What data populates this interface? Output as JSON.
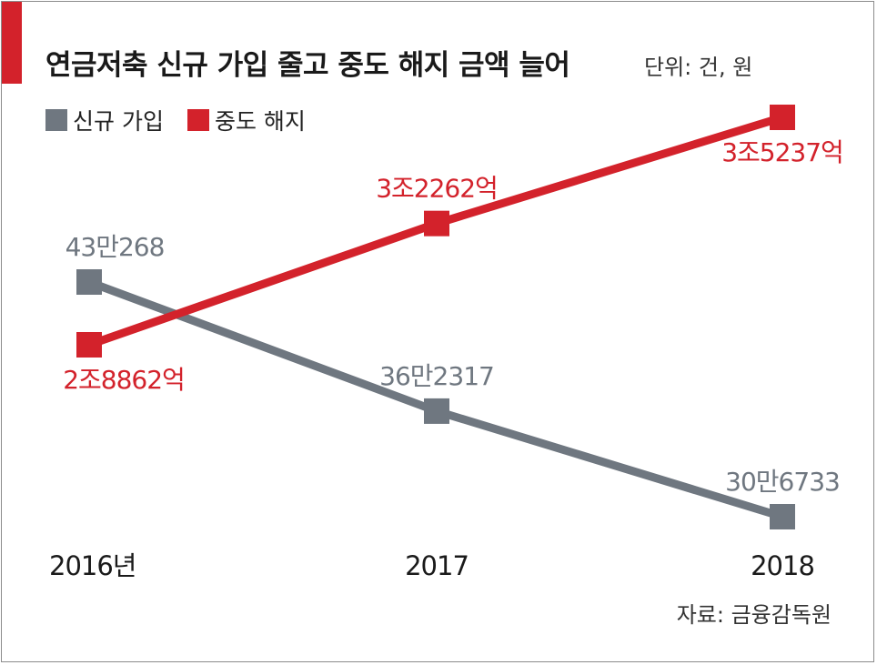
{
  "header": {
    "title": "연금저축 신규 가입 줄고 중도 해지 금액 늘어",
    "unit": "단위: 건, 원"
  },
  "source": "자료: 금융감독원",
  "colors": {
    "accent": "#d3222b",
    "new_subscription": "#6f7780",
    "early_termination": "#d3222b"
  },
  "chart_data": {
    "type": "line",
    "title": "연금저축 신규 가입 줄고 중도 해지 금액 늘어",
    "unit": "단위: 건, 원",
    "x": [
      "2016년",
      "2017",
      "2018"
    ],
    "legend": "top-left",
    "grid": false,
    "series": [
      {
        "name": "신규 가입",
        "values": [
          430268,
          362317,
          306733
        ],
        "labels": [
          "43만268",
          "36만2317",
          "30만6733"
        ],
        "color": "#6f7780"
      },
      {
        "name": "중도 해지",
        "values": [
          2886200000000,
          3226200000000,
          3523700000000
        ],
        "labels": [
          "2조8862억",
          "3조2262억",
          "3조5237억"
        ],
        "color": "#d3222b"
      }
    ]
  }
}
